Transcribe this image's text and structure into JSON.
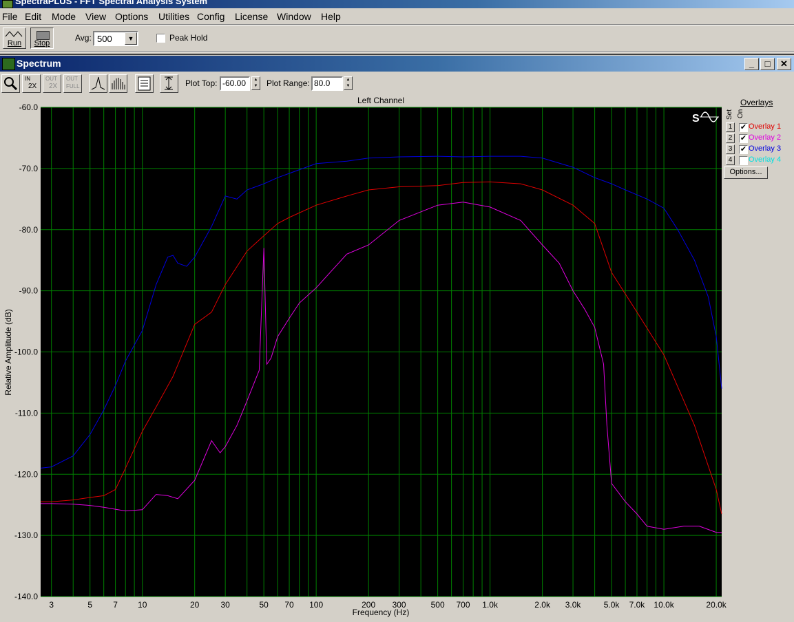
{
  "app": {
    "title": "SpectraPLUS - FFT Spectral Analysis System"
  },
  "menu": [
    "File",
    "Edit",
    "Mode",
    "View",
    "Options",
    "Utilities",
    "Config",
    "License",
    "Window",
    "Help"
  ],
  "toolbar": {
    "run_label": "Run",
    "stop_label": "Stop",
    "avg_label": "Avg:",
    "avg_value": "500",
    "peak_hold_label": "Peak Hold",
    "peak_hold_checked": false
  },
  "child_window": {
    "title": "Spectrum",
    "plot_top_label": "Plot Top:",
    "plot_top_value": "-60.00",
    "plot_range_label": "Plot Range:",
    "plot_range_value": "80.0",
    "zoom_in_label": "2X",
    "zoom_out_label": "2X",
    "zoom_full_label": "FULL"
  },
  "overlays": {
    "header": "Overlays",
    "set_label": "Set",
    "on_label": "On",
    "items": [
      {
        "num": "1",
        "name": "Overlay 1",
        "on": true,
        "color": "#e00000"
      },
      {
        "num": "2",
        "name": "Overlay 2",
        "on": true,
        "color": "#e000e0"
      },
      {
        "num": "3",
        "name": "Overlay 3",
        "on": true,
        "color": "#0000e0"
      },
      {
        "num": "4",
        "name": "Overlay 4",
        "on": false,
        "color": "#00e0e0"
      }
    ],
    "options_label": "Options..."
  },
  "chart_data": {
    "type": "line",
    "title": "Left Channel",
    "xlabel": "Frequency (Hz)",
    "ylabel": "Relative Amplitude (dB)",
    "x_scale": "log",
    "xlim": [
      2.6,
      21500
    ],
    "ylim": [
      -140,
      -60
    ],
    "grid": true,
    "y_ticks": [
      "-60.0",
      "-70.0",
      "-80.0",
      "-90.0",
      "-100.0",
      "-110.0",
      "-120.0",
      "-130.0",
      "-140.0"
    ],
    "y_tick_values": [
      -60,
      -70,
      -80,
      -90,
      -100,
      -110,
      -120,
      -130,
      -140
    ],
    "x_ticks": [
      {
        "v": 3,
        "label": "3"
      },
      {
        "v": 5,
        "label": "5"
      },
      {
        "v": 7,
        "label": "7"
      },
      {
        "v": 10,
        "label": "10"
      },
      {
        "v": 20,
        "label": "20"
      },
      {
        "v": 30,
        "label": "30"
      },
      {
        "v": 50,
        "label": "50"
      },
      {
        "v": 70,
        "label": "70"
      },
      {
        "v": 100,
        "label": "100"
      },
      {
        "v": 200,
        "label": "200"
      },
      {
        "v": 300,
        "label": "300"
      },
      {
        "v": 500,
        "label": "500"
      },
      {
        "v": 700,
        "label": "700"
      },
      {
        "v": 1000,
        "label": "1.0k"
      },
      {
        "v": 2000,
        "label": "2.0k"
      },
      {
        "v": 3000,
        "label": "3.0k"
      },
      {
        "v": 5000,
        "label": "5.0k"
      },
      {
        "v": 7000,
        "label": "7.0k"
      },
      {
        "v": 10000,
        "label": "10.0k"
      },
      {
        "v": 20000,
        "label": "20.0k"
      }
    ],
    "series": [
      {
        "name": "Overlay 1",
        "color": "#e00000",
        "x": [
          2.6,
          3,
          4,
          5,
          6,
          7,
          8,
          10,
          12,
          15,
          20,
          25,
          30,
          40,
          50,
          60,
          70,
          100,
          150,
          200,
          300,
          500,
          700,
          1000,
          1500,
          2000,
          3000,
          4000,
          5000,
          7000,
          10000,
          15000,
          20000,
          21500
        ],
        "y": [
          -124.5,
          -124.5,
          -124.2,
          -123.8,
          -123.5,
          -122.5,
          -119,
          -113,
          -109,
          -104,
          -95.5,
          -93.5,
          -89,
          -83.5,
          -81,
          -79,
          -78,
          -76,
          -74.5,
          -73.5,
          -73,
          -72.8,
          -72.3,
          -72.2,
          -72.5,
          -73.5,
          -76,
          -79,
          -87,
          -93.5,
          -100.5,
          -112,
          -122.5,
          -126.5
        ]
      },
      {
        "name": "Overlay 2",
        "color": "#e000e0",
        "x": [
          2.6,
          3,
          4,
          5,
          6,
          8,
          10,
          12,
          14,
          16,
          20,
          25,
          28,
          30,
          35,
          40,
          47,
          50,
          52,
          55,
          60,
          70,
          80,
          100,
          150,
          200,
          300,
          500,
          700,
          1000,
          1500,
          2000,
          2500,
          3000,
          3500,
          4000,
          4500,
          4700,
          5000,
          6000,
          7000,
          8000,
          10000,
          13000,
          16000,
          20000,
          21500
        ],
        "y": [
          -124.8,
          -124.8,
          -124.9,
          -125.1,
          -125.4,
          -126,
          -125.8,
          -123.3,
          -123.5,
          -124,
          -121,
          -114.5,
          -116.5,
          -115.5,
          -112,
          -108,
          -103,
          -83,
          -102,
          -101,
          -97.5,
          -94.5,
          -92,
          -89.5,
          -84,
          -82.5,
          -78.5,
          -76,
          -75.5,
          -76.3,
          -78.5,
          -82.5,
          -85.5,
          -90,
          -93,
          -96,
          -102,
          -112,
          -121.5,
          -124.5,
          -126.5,
          -128.5,
          -129,
          -128.5,
          -128.5,
          -129.5,
          -129.5
        ]
      },
      {
        "name": "Overlay 3",
        "color": "#0000e0",
        "x": [
          2.6,
          3,
          4,
          5,
          6,
          7,
          8,
          10,
          12,
          14,
          15,
          16,
          18,
          20,
          25,
          30,
          35,
          40,
          50,
          60,
          70,
          100,
          150,
          200,
          300,
          500,
          700,
          1000,
          1500,
          2000,
          3000,
          4000,
          5000,
          6000,
          8000,
          10000,
          12000,
          15000,
          18000,
          20000,
          21500
        ],
        "y": [
          -119,
          -118.8,
          -117,
          -113.5,
          -109.5,
          -105.5,
          -101.5,
          -96.5,
          -89,
          -84.5,
          -84.2,
          -85.5,
          -86,
          -84.5,
          -79.5,
          -74.5,
          -75,
          -73.5,
          -72.5,
          -71.5,
          -70.8,
          -69.2,
          -68.8,
          -68.3,
          -68.1,
          -68,
          -68.1,
          -68,
          -68,
          -68.3,
          -69.8,
          -71.5,
          -72.5,
          -73.5,
          -75,
          -76.5,
          -80,
          -85,
          -91,
          -97.5,
          -106
        ]
      }
    ]
  }
}
